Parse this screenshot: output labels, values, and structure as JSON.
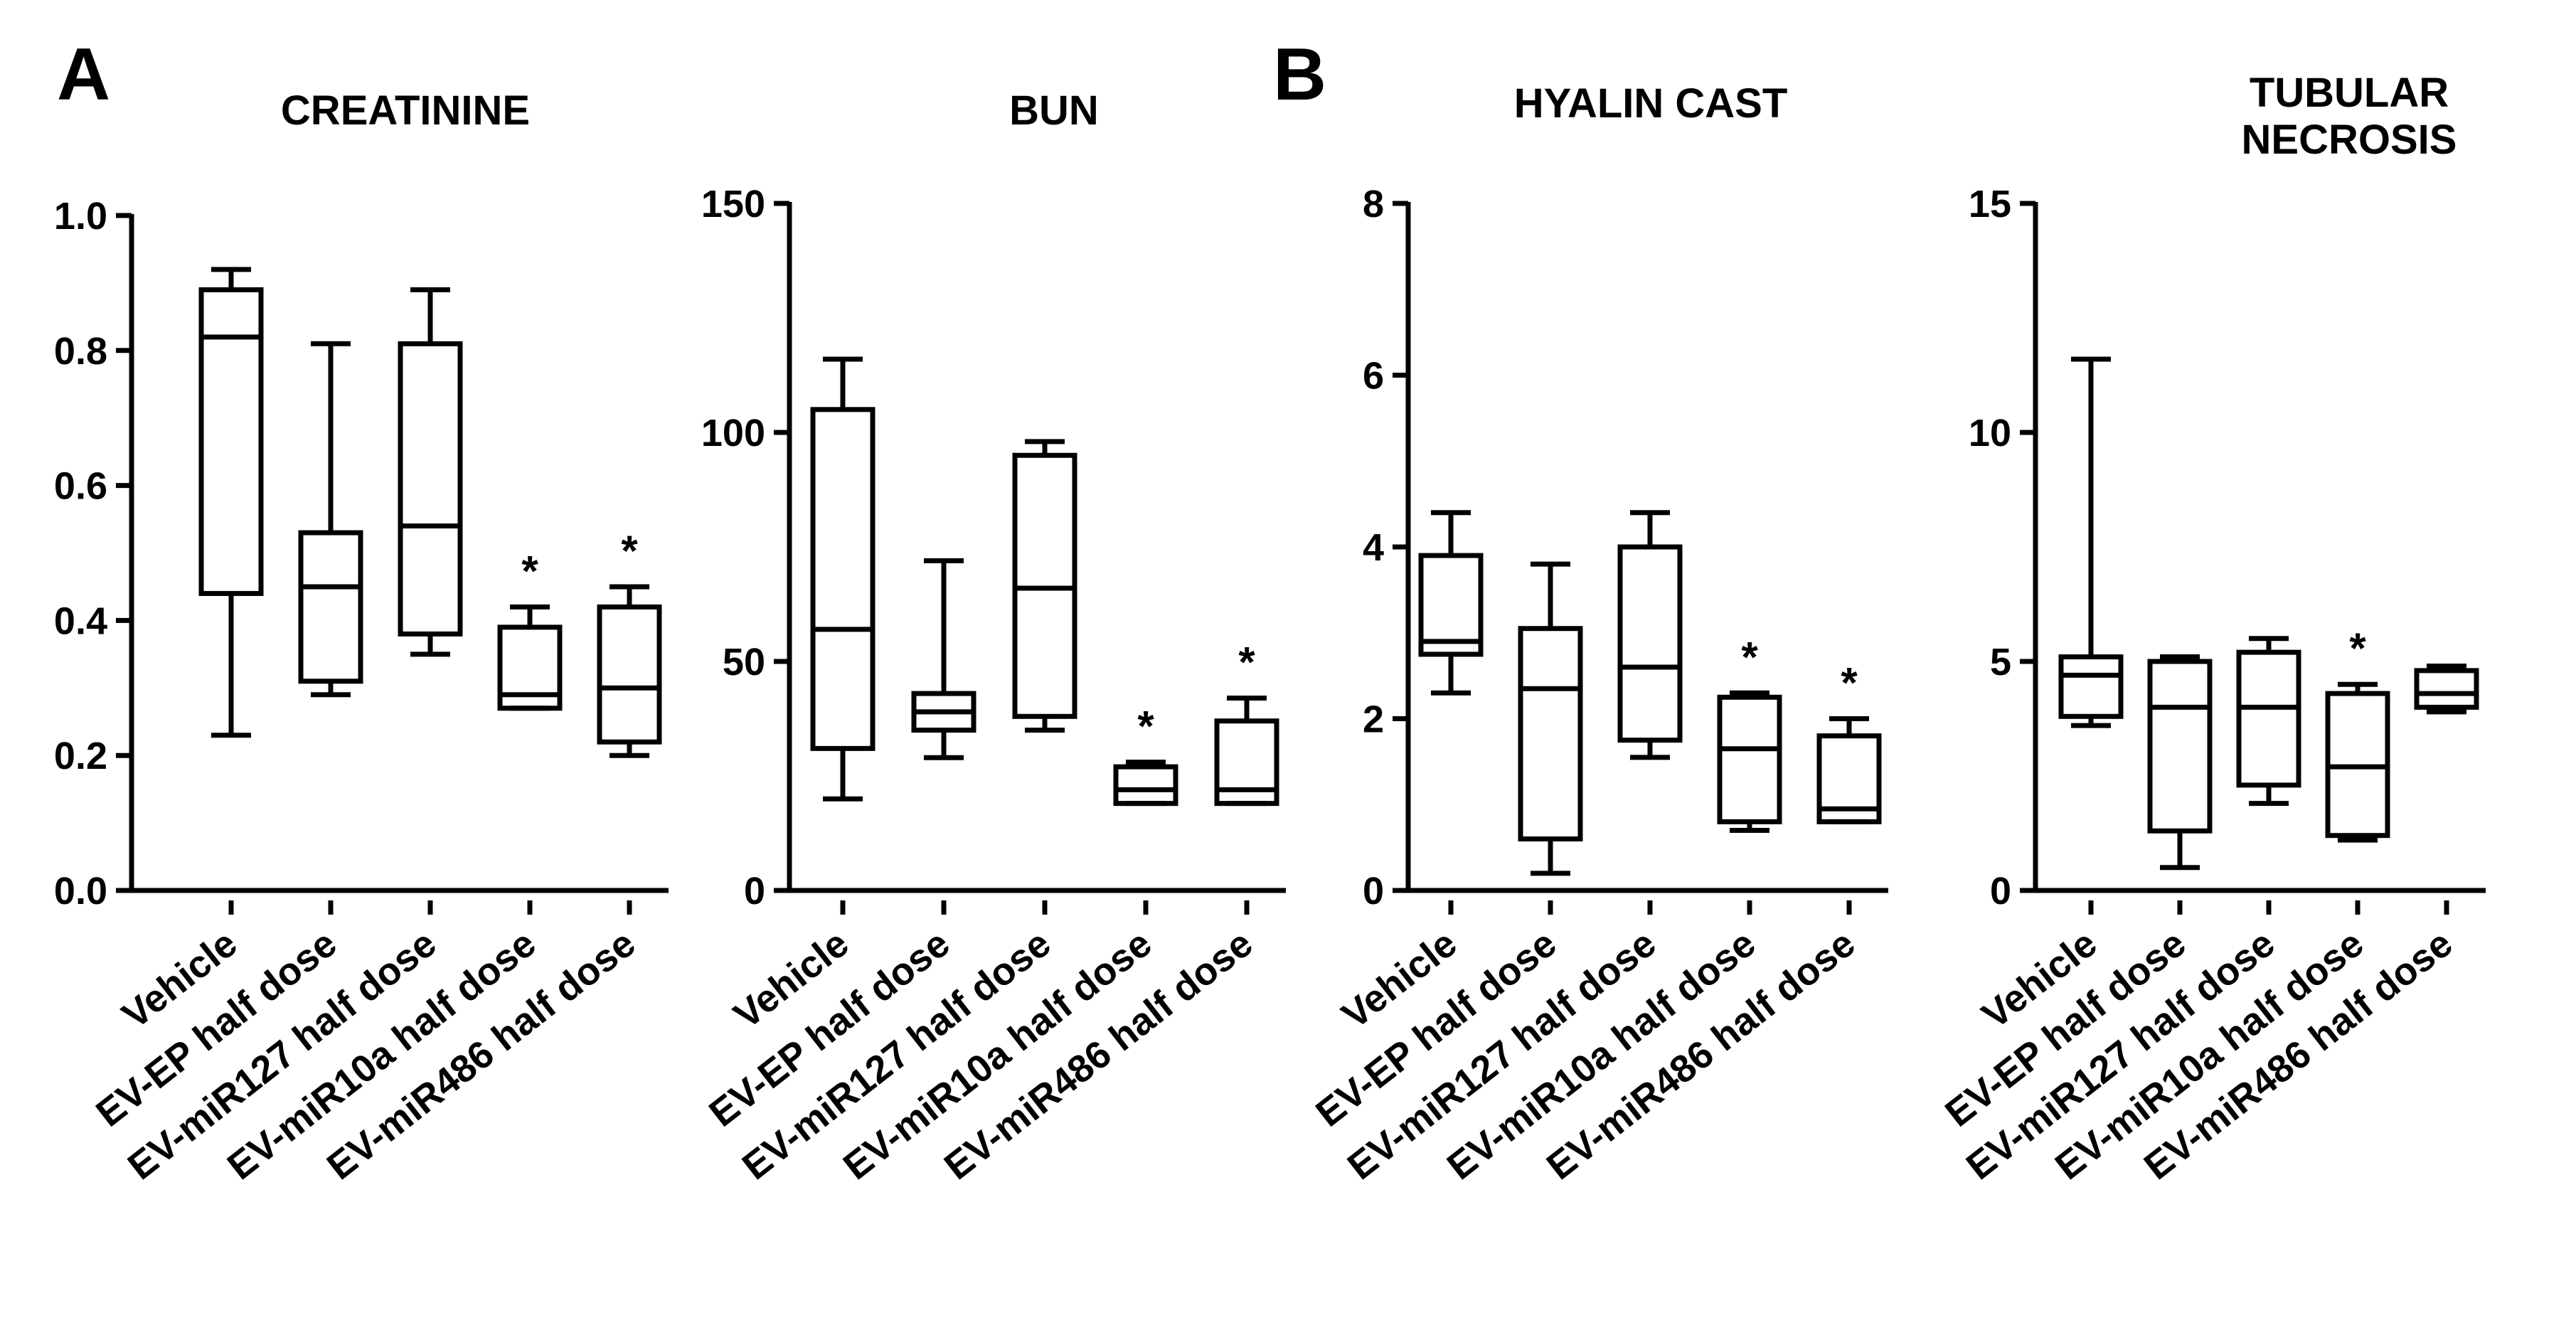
{
  "panels": [
    {
      "letter": "A"
    },
    {
      "letter": "B"
    }
  ],
  "chart_data": [
    {
      "type": "box",
      "panel": "A",
      "title": "CREATININE",
      "title_lines": [
        "CREATININE"
      ],
      "ylim": [
        0,
        1.0
      ],
      "yticks": [
        0.0,
        0.2,
        0.4,
        0.6,
        0.8,
        1.0
      ],
      "ytick_labels": [
        "0.0",
        "0.2",
        "0.4",
        "0.6",
        "0.8",
        "1.0"
      ],
      "categories": [
        "Vehicle",
        "EV-EP half dose",
        "EV-miR127 half dose",
        "EV-miR10a half dose",
        "EV-miR486 half dose"
      ],
      "boxes": [
        {
          "min": 0.23,
          "q1": 0.44,
          "median": 0.82,
          "q3": 0.89,
          "max": 0.92
        },
        {
          "min": 0.29,
          "q1": 0.31,
          "median": 0.45,
          "q3": 0.53,
          "max": 0.81
        },
        {
          "min": 0.35,
          "q1": 0.38,
          "median": 0.54,
          "q3": 0.81,
          "max": 0.89
        },
        {
          "min": 0.27,
          "q1": 0.27,
          "median": 0.29,
          "q3": 0.39,
          "max": 0.42
        },
        {
          "min": 0.2,
          "q1": 0.22,
          "median": 0.3,
          "q3": 0.42,
          "max": 0.45
        }
      ],
      "significance": [
        "",
        "",
        "",
        "*",
        "*"
      ]
    },
    {
      "type": "box",
      "panel": "A",
      "title": "BUN",
      "title_lines": [
        "BUN"
      ],
      "ylim": [
        0,
        150
      ],
      "yticks": [
        0,
        50,
        100,
        150
      ],
      "ytick_labels": [
        "0",
        "50",
        "100",
        "150"
      ],
      "categories": [
        "Vehicle",
        "EV-EP half dose",
        "EV-miR127 half dose",
        "EV-miR10a half dose",
        "EV-miR486 half dose"
      ],
      "boxes": [
        {
          "min": 20,
          "q1": 31,
          "median": 57,
          "q3": 105,
          "max": 116
        },
        {
          "min": 29,
          "q1": 35,
          "median": 39,
          "q3": 43,
          "max": 72
        },
        {
          "min": 35,
          "q1": 38,
          "median": 66,
          "q3": 95,
          "max": 98
        },
        {
          "min": 19,
          "q1": 19,
          "median": 22,
          "q3": 27,
          "max": 28
        },
        {
          "min": 19,
          "q1": 19,
          "median": 22,
          "q3": 37,
          "max": 42
        }
      ],
      "significance": [
        "",
        "",
        "",
        "*",
        "*"
      ]
    },
    {
      "type": "box",
      "panel": "B",
      "title": "HYALIN CAST",
      "title_lines": [
        "HYALIN CAST"
      ],
      "ylim": [
        0,
        8
      ],
      "yticks": [
        0,
        2,
        4,
        6,
        8
      ],
      "ytick_labels": [
        "0",
        "2",
        "4",
        "6",
        "8"
      ],
      "categories": [
        "Vehicle",
        "EV-EP half dose",
        "EV-miR127 half dose",
        "EV-miR10a half dose",
        "EV-miR486 half dose"
      ],
      "boxes": [
        {
          "min": 2.3,
          "q1": 2.75,
          "median": 2.9,
          "q3": 3.9,
          "max": 4.4
        },
        {
          "min": 0.2,
          "q1": 0.6,
          "median": 2.35,
          "q3": 3.05,
          "max": 3.8
        },
        {
          "min": 1.55,
          "q1": 1.75,
          "median": 2.6,
          "q3": 4.0,
          "max": 4.4
        },
        {
          "min": 0.7,
          "q1": 0.8,
          "median": 1.65,
          "q3": 2.25,
          "max": 2.3
        },
        {
          "min": 0.8,
          "q1": 0.8,
          "median": 0.95,
          "q3": 1.8,
          "max": 2.0
        }
      ],
      "significance": [
        "",
        "",
        "",
        "*",
        "*"
      ]
    },
    {
      "type": "box",
      "panel": "B",
      "title": "TUBULAR NECROSIS",
      "title_lines": [
        "TUBULAR",
        "NECROSIS"
      ],
      "ylim": [
        0,
        15
      ],
      "yticks": [
        0,
        5,
        10,
        15
      ],
      "ytick_labels": [
        "0",
        "5",
        "10",
        "15"
      ],
      "categories": [
        "Vehicle",
        "EV-EP half dose",
        "EV-miR127 half dose",
        "EV-miR10a half dose",
        "EV-miR486 half dose"
      ],
      "boxes": [
        {
          "min": 3.6,
          "q1": 3.8,
          "median": 4.7,
          "q3": 5.1,
          "max": 11.6
        },
        {
          "min": 0.5,
          "q1": 1.3,
          "median": 4.0,
          "q3": 5.0,
          "max": 5.1
        },
        {
          "min": 1.9,
          "q1": 2.3,
          "median": 4.0,
          "q3": 5.2,
          "max": 5.5
        },
        {
          "min": 1.1,
          "q1": 1.2,
          "median": 2.7,
          "q3": 4.3,
          "max": 4.5
        },
        {
          "min": 3.9,
          "q1": 4.0,
          "median": 4.3,
          "q3": 4.8,
          "max": 4.9
        }
      ],
      "significance": [
        "",
        "",
        "",
        "*",
        ""
      ]
    }
  ]
}
